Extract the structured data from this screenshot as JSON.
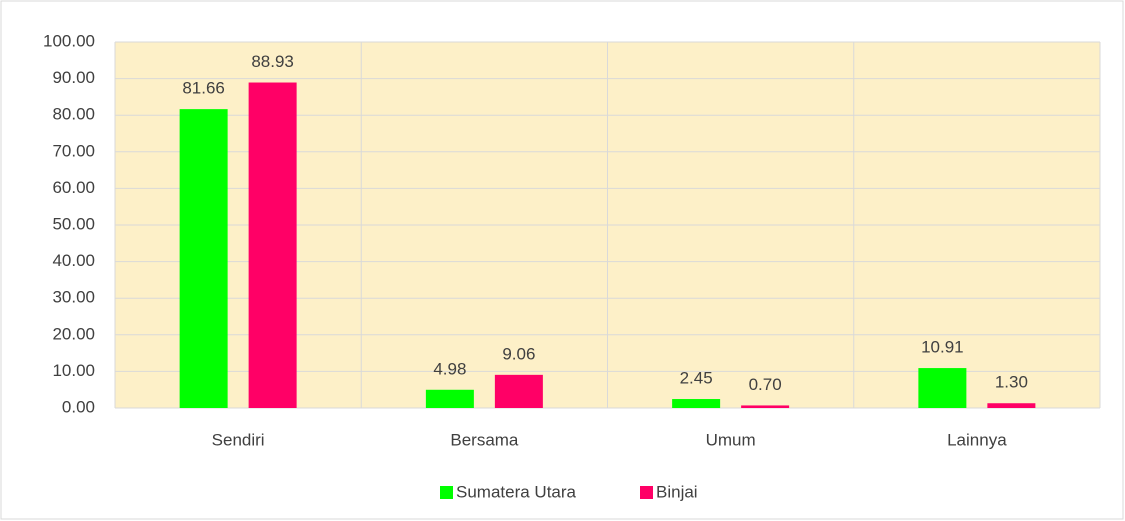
{
  "chart_data": {
    "type": "bar",
    "categories": [
      "Sendiri",
      "Bersama",
      "Umum",
      "Lainnya"
    ],
    "series": [
      {
        "name": "Sumatera Utara",
        "color": "#00ff00",
        "values": [
          81.66,
          4.98,
          2.45,
          10.91
        ],
        "value_labels": [
          "81.66",
          "4.98",
          "2.45",
          "10.91"
        ]
      },
      {
        "name": "Binjai",
        "color": "#ff0066",
        "values": [
          88.93,
          9.06,
          0.7,
          1.3
        ],
        "value_labels": [
          "88.93",
          "9.06",
          "0.70",
          "1.30"
        ]
      }
    ],
    "ylim": [
      0,
      100
    ],
    "yticks": [
      {
        "value": 0,
        "label": "0.00"
      },
      {
        "value": 10,
        "label": "10.00"
      },
      {
        "value": 20,
        "label": "20.00"
      },
      {
        "value": 30,
        "label": "30.00"
      },
      {
        "value": 40,
        "label": "40.00"
      },
      {
        "value": 50,
        "label": "50.00"
      },
      {
        "value": 60,
        "label": "60.00"
      },
      {
        "value": 70,
        "label": "70.00"
      },
      {
        "value": 80,
        "label": "80.00"
      },
      {
        "value": 90,
        "label": "90.00"
      },
      {
        "value": 100,
        "label": "100.00"
      }
    ],
    "grid": true,
    "legend": "bottom",
    "background": "#fdf0c8"
  }
}
